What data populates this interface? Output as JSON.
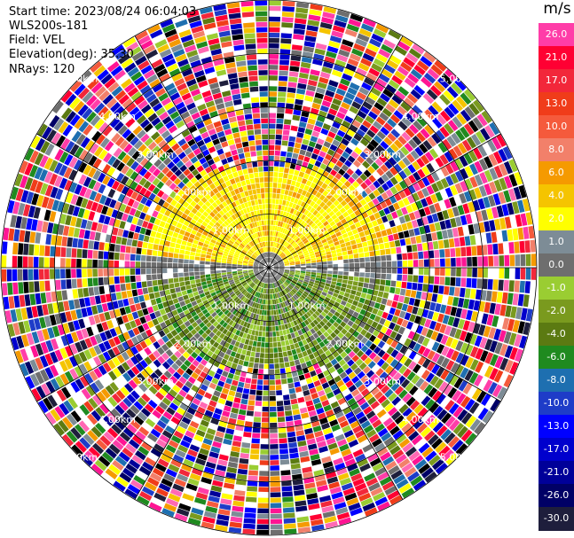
{
  "header": {
    "start_time": "Start time: 2023/08/24 06:04:03",
    "instrument": "WLS200s-181",
    "field": "Field: VEL",
    "elevation": "Elevation(deg): 35.30",
    "nrays": "NRays: 120"
  },
  "range_rings": [
    {
      "label": "1.00km"
    },
    {
      "label": "2.00km"
    },
    {
      "label": "3.00km"
    },
    {
      "label": "4.00km"
    },
    {
      "label": "5.00km"
    }
  ],
  "colorbar": {
    "units": "m/s",
    "levels": [
      {
        "label": "26.0",
        "color": "#ff3da8"
      },
      {
        "label": "21.0",
        "color": "#ff0033"
      },
      {
        "label": "17.0",
        "color": "#f2273a"
      },
      {
        "label": "13.0",
        "color": "#f03c1a"
      },
      {
        "label": "10.0",
        "color": "#f55a3c"
      },
      {
        "label": "8.0",
        "color": "#f2806a"
      },
      {
        "label": "6.0",
        "color": "#f59a00"
      },
      {
        "label": "4.0",
        "color": "#f5c400"
      },
      {
        "label": "2.0",
        "color": "#ffff00"
      },
      {
        "label": "1.0",
        "color": "#7d8c96"
      },
      {
        "label": "0.0",
        "color": "#6e6e6e"
      },
      {
        "label": "-1.0",
        "color": "#9acd32"
      },
      {
        "label": "-2.0",
        "color": "#7a9a1e"
      },
      {
        "label": "-4.0",
        "color": "#5b7a12"
      },
      {
        "label": "-6.0",
        "color": "#1f8a1f"
      },
      {
        "label": "-8.0",
        "color": "#1e6fb0"
      },
      {
        "label": "-10.0",
        "color": "#1e3cc8"
      },
      {
        "label": "-13.0",
        "color": "#0000ff"
      },
      {
        "label": "-17.0",
        "color": "#0000cd"
      },
      {
        "label": "-21.0",
        "color": "#000099"
      },
      {
        "label": "-26.0",
        "color": "#000066"
      },
      {
        "label": "-30.0",
        "color": "#1e1e3c"
      }
    ]
  }
}
